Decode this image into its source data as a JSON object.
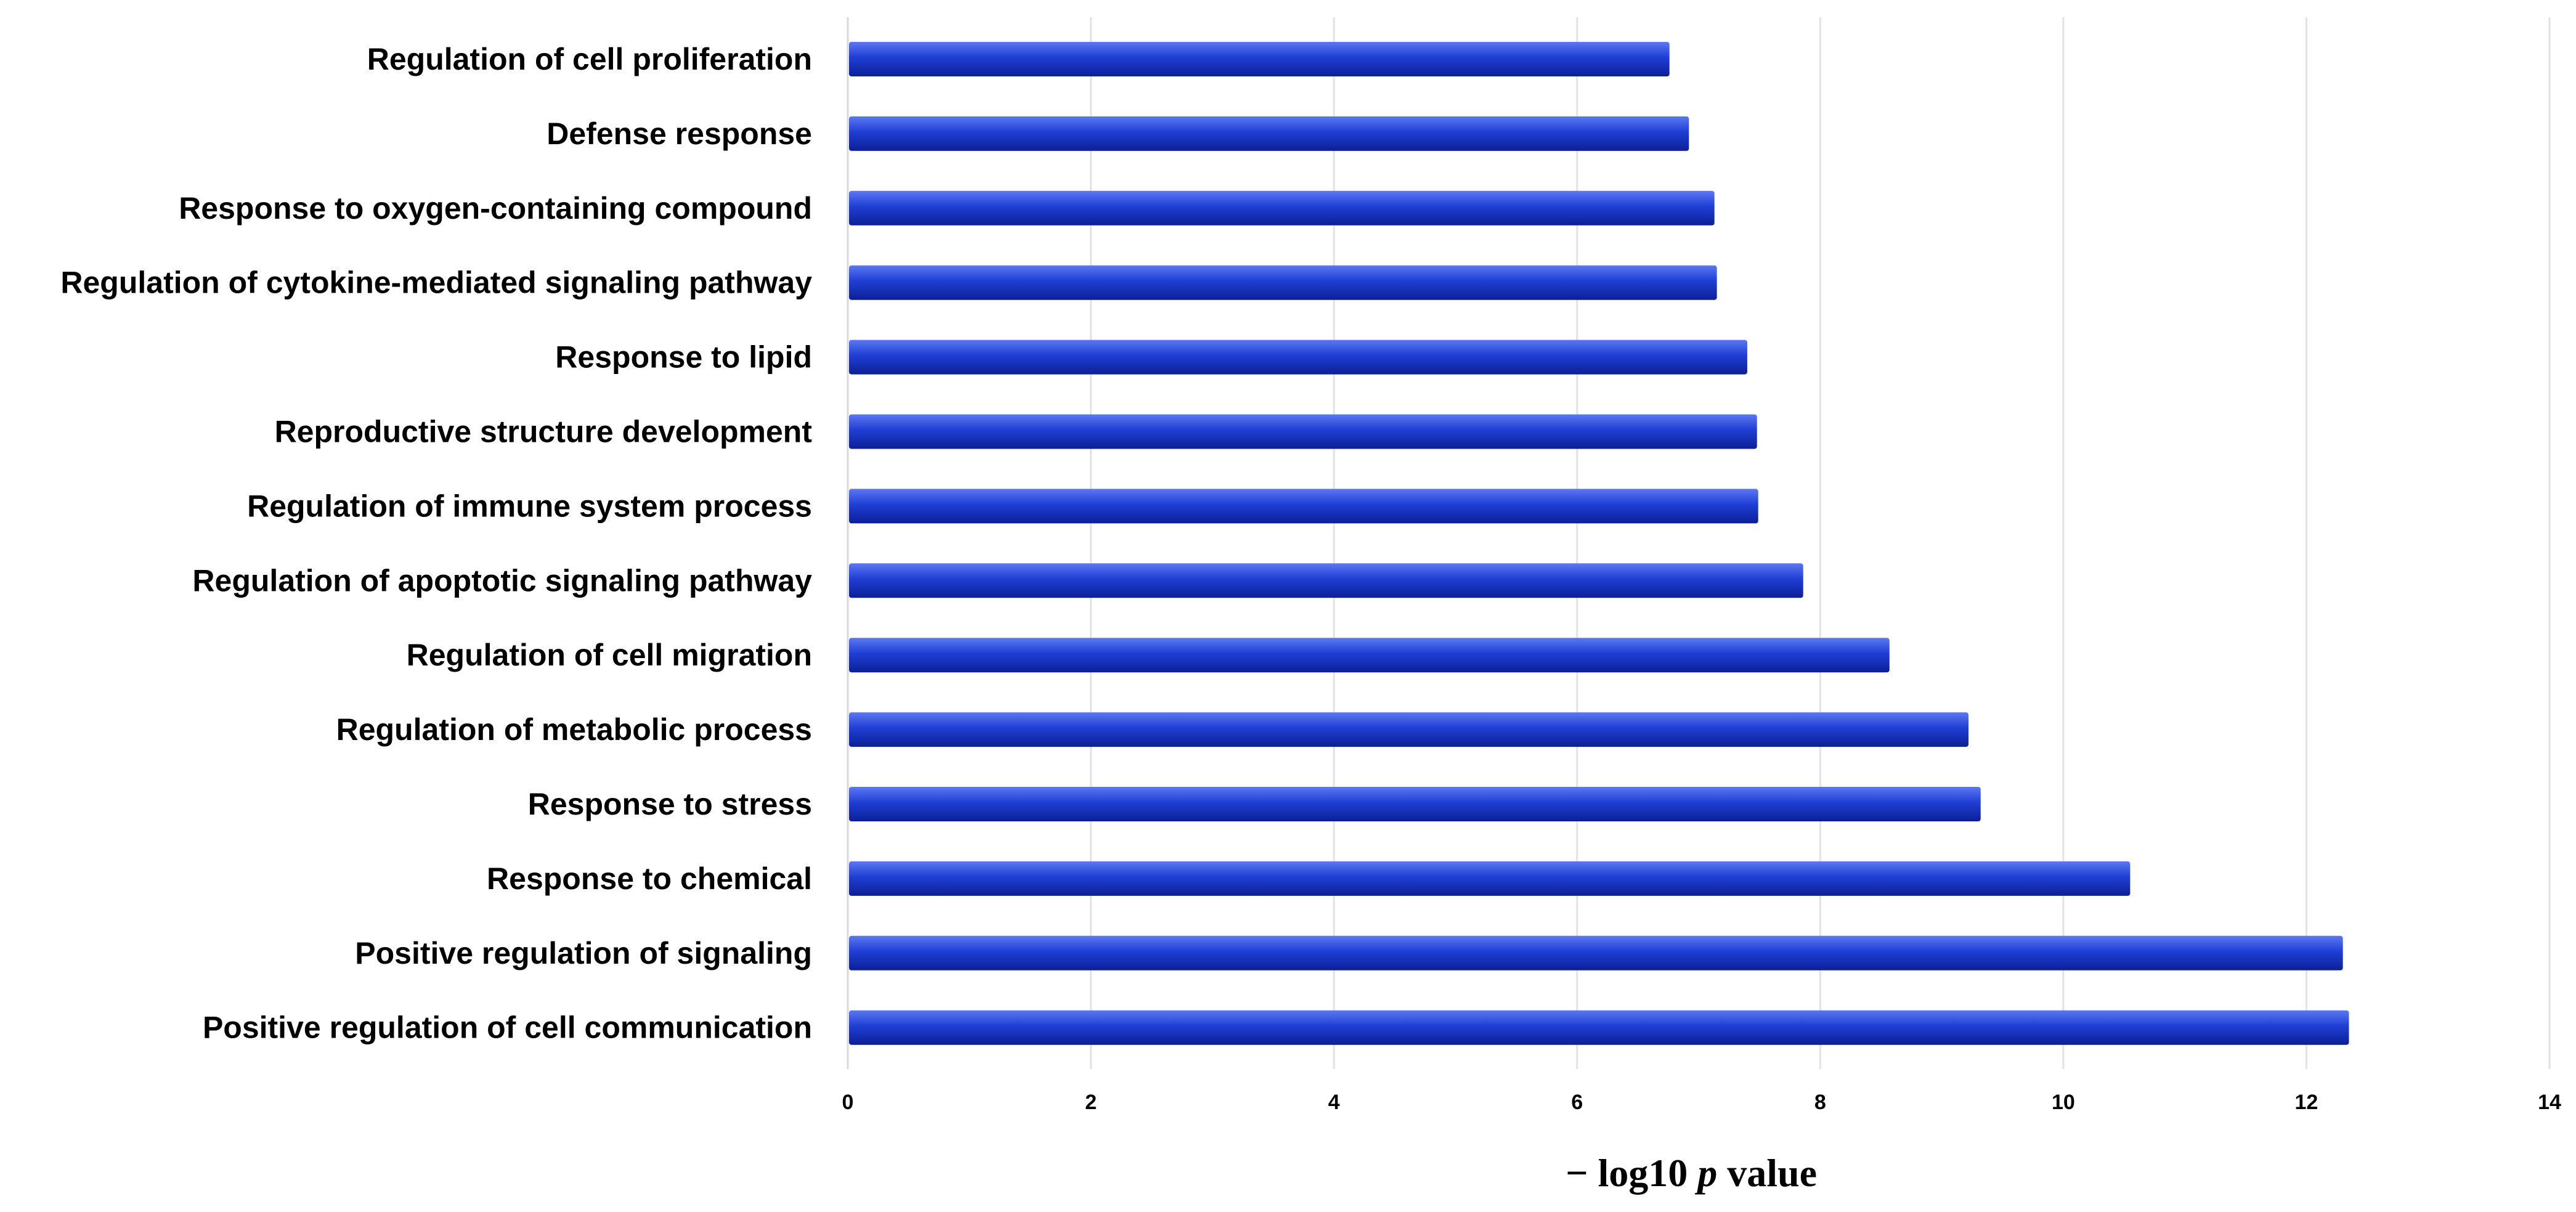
{
  "chart_data": {
    "type": "bar",
    "orientation": "horizontal",
    "categories": [
      "Regulation of cell proliferation",
      "Defense response",
      "Response to oxygen-containing compound",
      "Regulation of cytokine-mediated signaling pathway",
      "Response to lipid",
      "Reproductive structure development",
      "Regulation of immune system process",
      "Regulation of apoptotic signaling pathway",
      "Regulation of cell migration",
      "Regulation of metabolic process",
      "Response to stress",
      "Response to chemical",
      "Positive regulation of signaling",
      "Positive regulation of cell communication"
    ],
    "values": [
      6.76,
      6.92,
      7.13,
      7.15,
      7.4,
      7.48,
      7.49,
      7.86,
      8.57,
      9.22,
      9.32,
      10.55,
      12.3,
      12.35
    ],
    "xlim": [
      0,
      14
    ],
    "xticks": [
      0,
      2,
      4,
      6,
      8,
      10,
      12,
      14
    ],
    "xlabel_parts": [
      "− log10 ",
      "p",
      " value"
    ],
    "grid": true,
    "bar_color": "#1f3fd4",
    "bar_highlight": "#5c78f2",
    "bar_shadow": "#0c1f96"
  }
}
